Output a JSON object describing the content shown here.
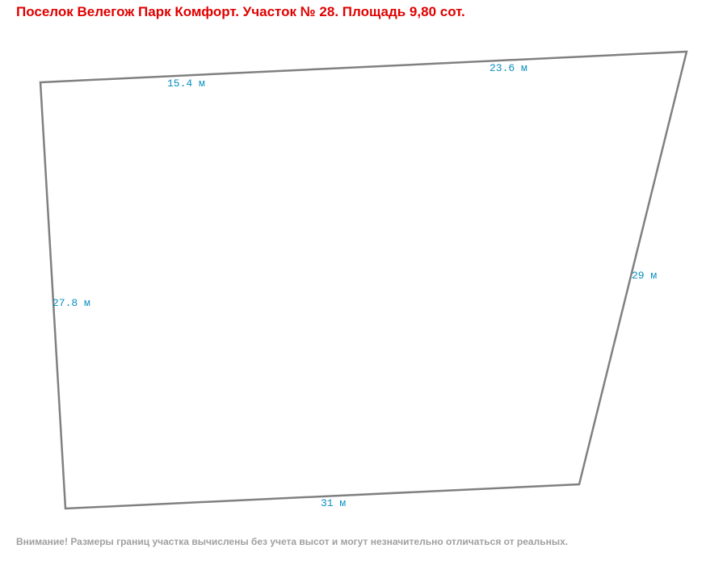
{
  "title": "Поселок Велегож Парк Комфорт. Участок № 28. Площадь 9,80 сот.",
  "edges": [
    "15.4 м",
    "23.6 м",
    "29 м",
    "31 м",
    "27.8 м"
  ],
  "note": "Внимание! Размеры границ участка вычислены без учета высот и могут незначительно отличаться от реальных."
}
